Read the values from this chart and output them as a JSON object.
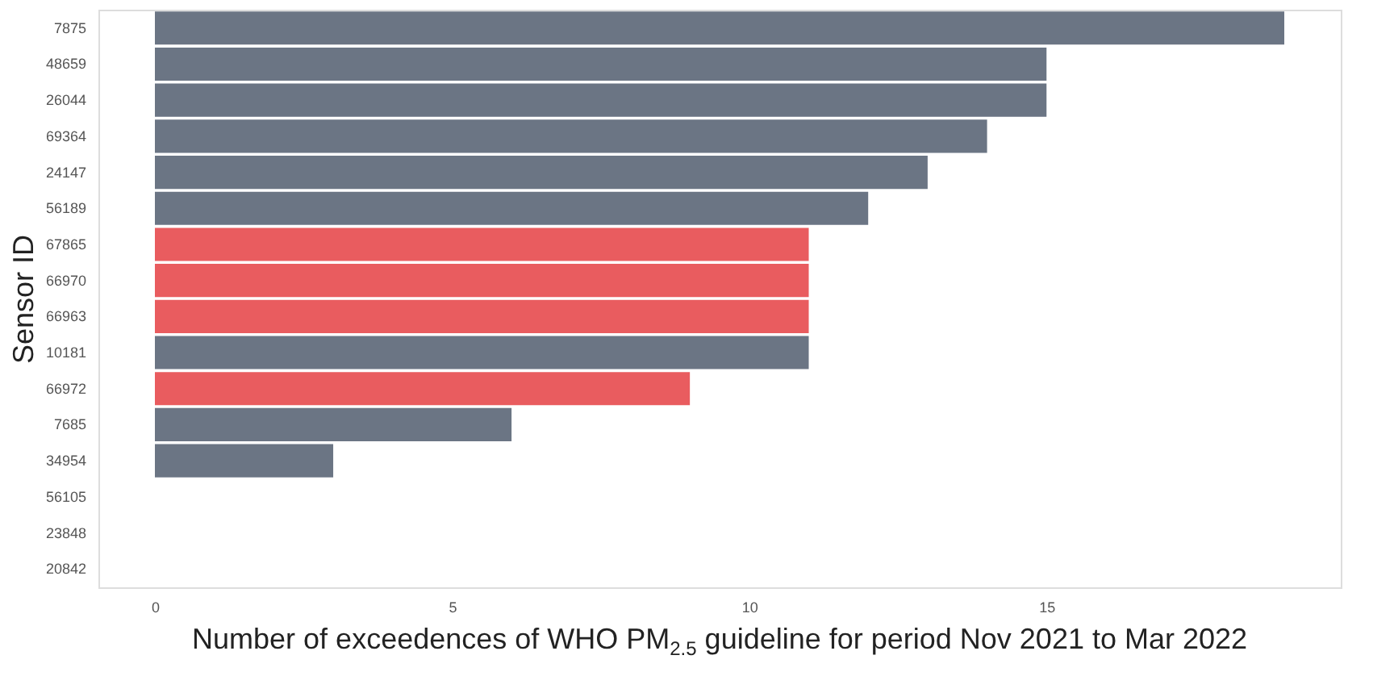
{
  "chart_data": {
    "type": "bar",
    "orientation": "horizontal",
    "xlabel": "Number of exceedences of WHO PM$_{2.5}$ guideline for period Nov 2021 to Mar 2022",
    "ylabel": "Sensor ID",
    "categories": [
      "7875",
      "48659",
      "26044",
      "69364",
      "24147",
      "56189",
      "67865",
      "66970",
      "66963",
      "10181",
      "66972",
      "7685",
      "34954",
      "56105",
      "23848",
      "20842"
    ],
    "values": [
      19,
      15,
      15,
      14,
      13,
      12,
      11,
      11,
      11,
      11,
      9,
      6,
      3,
      0,
      0,
      0
    ],
    "colors": [
      "#6b7584",
      "#6b7584",
      "#6b7584",
      "#6b7584",
      "#6b7584",
      "#6b7584",
      "#e95c5f",
      "#e95c5f",
      "#e95c5f",
      "#6b7584",
      "#e95c5f",
      "#6b7584",
      "#6b7584",
      "#6b7584",
      "#6b7584",
      "#6b7584"
    ],
    "xlim": [
      -0.95,
      19.95
    ],
    "xticks": [
      0,
      5,
      10,
      15
    ],
    "grid": false
  }
}
